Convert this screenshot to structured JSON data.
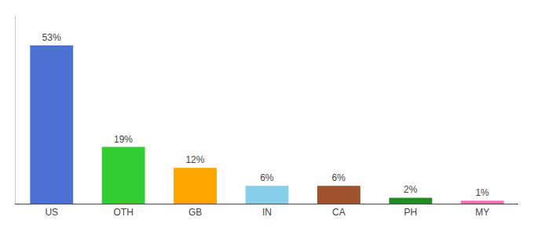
{
  "chart_data": {
    "type": "bar",
    "categories": [
      "US",
      "OTH",
      "GB",
      "IN",
      "CA",
      "PH",
      "MY"
    ],
    "values": [
      53,
      19,
      12,
      6,
      6,
      2,
      1
    ],
    "value_labels": [
      "53%",
      "19%",
      "12%",
      "6%",
      "6%",
      "2%",
      "1%"
    ],
    "colors": [
      "#4C72D5",
      "#33CC33",
      "#FFA500",
      "#87CEEB",
      "#A0522D",
      "#228B22",
      "#FF69B4"
    ],
    "ylim": [
      0,
      63
    ],
    "data_labels": true,
    "tick_labels": "x",
    "grid": false
  }
}
